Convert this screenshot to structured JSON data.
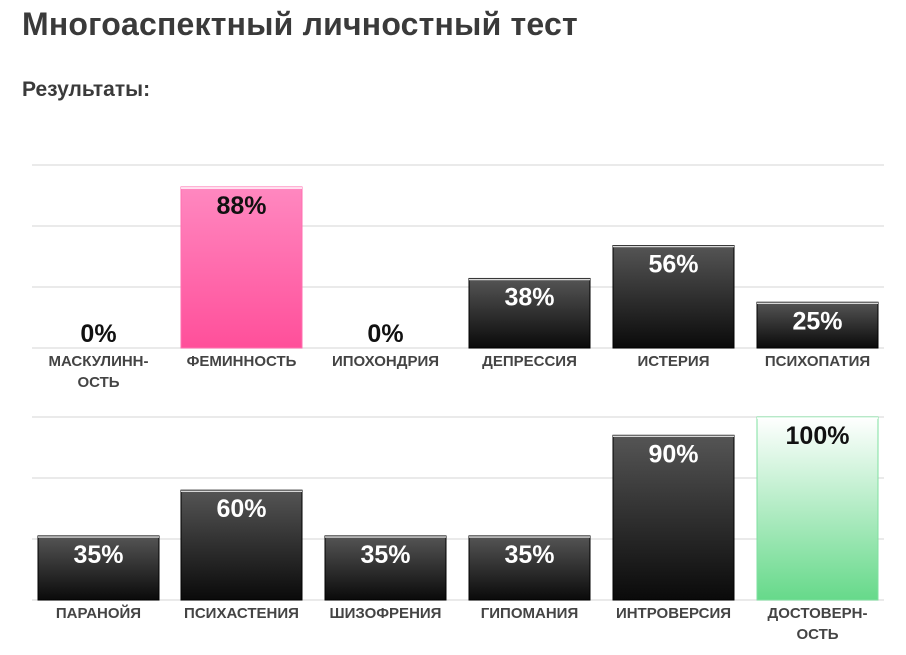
{
  "page": {
    "title": "Многоаспектный личностный тест",
    "results_heading": "Результаты:"
  },
  "colors": {
    "dark_bar_top": "#555555",
    "dark_bar_bottom": "#0a0a0a",
    "pink_bar_top": "#ff88c0",
    "pink_bar_bottom": "#ff4f9a",
    "green_bar_top": "#ffffff",
    "green_bar_bottom": "#66d98a",
    "gridline": "#e4e4e4",
    "label_light": "#ffffff",
    "label_dark": "#111111"
  },
  "chart_data": [
    {
      "type": "bar",
      "ylim": [
        0,
        100
      ],
      "grid": true,
      "categories": [
        [
          "МАСКУЛИНН-",
          "ОСТЬ"
        ],
        [
          "ФЕМИННОСТЬ"
        ],
        [
          "ИПОХОНДРИЯ"
        ],
        [
          "ДЕПРЕССИЯ"
        ],
        [
          "ИСТЕРИЯ"
        ],
        [
          "ПСИХОПАТИЯ"
        ]
      ],
      "values": [
        0,
        88,
        0,
        38,
        56,
        25
      ],
      "value_labels": [
        "0%",
        "88%",
        "0%",
        "38%",
        "56%",
        "25%"
      ],
      "styles": [
        "dark",
        "pink",
        "dark",
        "dark",
        "dark",
        "dark"
      ]
    },
    {
      "type": "bar",
      "ylim": [
        0,
        100
      ],
      "grid": true,
      "categories": [
        [
          "ПАРАНОЙЯ"
        ],
        [
          "ПСИХАСТЕНИЯ"
        ],
        [
          "ШИЗОФРЕНИЯ"
        ],
        [
          "ГИПОМАНИЯ"
        ],
        [
          "ИНТРОВЕРСИЯ"
        ],
        [
          "ДОСТОВЕРН-",
          "ОСТЬ"
        ]
      ],
      "values": [
        35,
        60,
        35,
        35,
        90,
        100
      ],
      "value_labels": [
        "35%",
        "60%",
        "35%",
        "35%",
        "90%",
        "100%"
      ],
      "styles": [
        "dark",
        "dark",
        "dark",
        "dark",
        "dark",
        "green"
      ]
    }
  ]
}
